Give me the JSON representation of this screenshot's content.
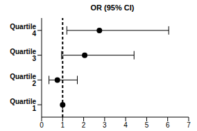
{
  "chart_data": {
    "type": "forest",
    "title": "OR (95% CI)",
    "categories": [
      "Quartile 1",
      "Quartile 2",
      "Quartile 3",
      "Quartile 4"
    ],
    "values": [
      1,
      0.75,
      2.05,
      2.75
    ],
    "ci_low": [
      1,
      0.35,
      0.95,
      1.2
    ],
    "ci_high": [
      1,
      1.7,
      4.4,
      6.05
    ],
    "reference_x": 1,
    "xlim": [
      0,
      7
    ],
    "xticks": [
      0,
      1,
      2,
      3,
      4,
      5,
      6,
      7
    ],
    "color": "#000000",
    "marker": "circle",
    "grid": false
  }
}
